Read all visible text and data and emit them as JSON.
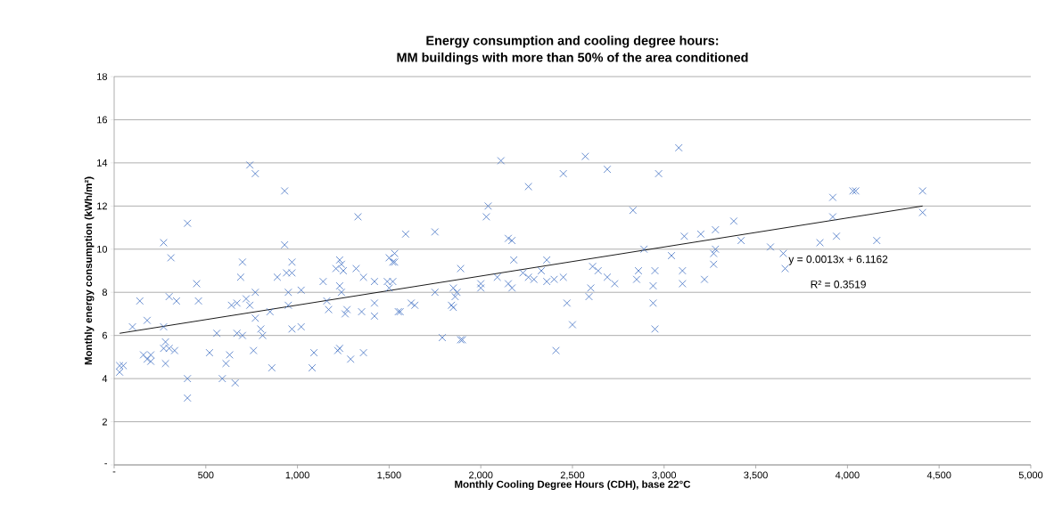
{
  "chart_data": {
    "type": "scatter",
    "title": "Energy consumption and cooling degree hours:\nMM buildings with more than 50% of the area conditioned",
    "xlabel": "Monthly Cooling Degree Hours (CDH), base 22°C",
    "ylabel": "Monthly energy consumption (kWh/m²)",
    "series": [
      {
        "marker": "cross",
        "color": "#4472c4",
        "x": [
          740,
          770,
          930,
          400,
          1330,
          270,
          930,
          310,
          700,
          970,
          690,
          890,
          940,
          970,
          1230,
          1240,
          1210,
          1250,
          1320,
          1360,
          1420,
          1500,
          1520,
          1520,
          450,
          140,
          300,
          340,
          460,
          100,
          180,
          270,
          640,
          670,
          720,
          770,
          740,
          770,
          800,
          810,
          670,
          700,
          560,
          760,
          520,
          610,
          630,
          590,
          660,
          400,
          400,
          30,
          50,
          30,
          160,
          180,
          200,
          200,
          280,
          270,
          300,
          330,
          280,
          860,
          850,
          950,
          970,
          1020,
          1020,
          950,
          1140,
          1160,
          1170,
          1260,
          1270,
          1350,
          1420,
          1420,
          1090,
          1080,
          1220,
          1230,
          1290,
          1360,
          1230,
          1240,
          1490,
          1500,
          1550,
          2110,
          2260,
          2450,
          2570,
          2690,
          2970,
          3080,
          2040,
          2030,
          2830,
          1590,
          1750,
          2150,
          2170,
          3110,
          2890,
          3040,
          1530,
          1530,
          1890,
          2180,
          2360,
          2230,
          2330,
          2090,
          2260,
          2290,
          2360,
          2400,
          2450,
          2150,
          2170,
          2000,
          2000,
          1850,
          1870,
          1750,
          2610,
          2640,
          2690,
          2730,
          2850,
          2860,
          2950,
          2940,
          3100,
          3100,
          2600,
          2590,
          2470,
          2940,
          2500,
          2950,
          2410,
          1790,
          1890,
          1900,
          1840,
          1850,
          1860,
          1560,
          1620,
          1640,
          3920,
          4030,
          4045,
          4410,
          4410,
          3920,
          3940,
          4160,
          3850,
          3380,
          3420,
          3280,
          3200,
          3280,
          3270,
          3270,
          3580,
          3650,
          3660,
          3220
        ],
        "values": [
          13.9,
          13.5,
          12.7,
          11.2,
          11.5,
          10.3,
          10.2,
          9.6,
          9.4,
          9.4,
          8.7,
          8.7,
          8.9,
          8.9,
          9.5,
          9.3,
          9.1,
          9.0,
          9.1,
          8.7,
          8.5,
          9.6,
          9.4,
          8.5,
          8.4,
          7.6,
          7.8,
          7.6,
          7.6,
          6.4,
          6.7,
          6.4,
          7.4,
          7.5,
          7.7,
          8.0,
          7.4,
          6.8,
          6.3,
          6.0,
          6.1,
          6.0,
          6.1,
          5.3,
          5.2,
          4.7,
          5.1,
          4.0,
          3.8,
          4.0,
          3.1,
          4.6,
          4.6,
          4.3,
          5.1,
          4.9,
          4.8,
          5.1,
          5.7,
          5.4,
          5.4,
          5.3,
          4.7,
          4.5,
          7.1,
          7.4,
          6.3,
          6.4,
          8.1,
          8.0,
          8.5,
          7.6,
          7.2,
          7.0,
          7.2,
          7.1,
          6.9,
          7.5,
          5.2,
          4.5,
          5.3,
          5.4,
          4.9,
          5.2,
          8.3,
          8.0,
          8.5,
          8.2,
          7.1,
          14.1,
          12.9,
          13.5,
          14.3,
          13.7,
          13.5,
          14.7,
          12.0,
          11.5,
          11.8,
          10.7,
          10.8,
          10.5,
          10.4,
          10.6,
          10.0,
          9.7,
          9.8,
          9.4,
          9.1,
          9.5,
          9.5,
          8.9,
          9.0,
          8.7,
          8.7,
          8.6,
          8.5,
          8.6,
          8.7,
          8.4,
          8.2,
          8.4,
          8.2,
          8.2,
          8.0,
          8.0,
          9.2,
          9.0,
          8.7,
          8.4,
          8.6,
          9.0,
          9.0,
          8.3,
          9.0,
          8.4,
          8.2,
          7.8,
          7.5,
          7.5,
          6.5,
          6.3,
          5.3,
          5.9,
          5.8,
          5.8,
          7.4,
          7.3,
          7.8,
          7.1,
          7.5,
          7.4,
          12.4,
          12.7,
          12.7,
          12.7,
          11.7,
          11.5,
          10.6,
          10.4,
          10.3,
          11.3,
          10.4,
          10.9,
          10.7,
          10.0,
          9.8,
          9.3,
          10.1,
          9.8,
          9.1,
          8.6
        ]
      },
      {
        "type": "line",
        "marker": "none",
        "color": "#000000",
        "x": [
          30,
          4410
        ],
        "values": [
          6.1,
          12.0
        ]
      }
    ],
    "grid": "y",
    "legend": false,
    "xlim": [
      0,
      5000
    ],
    "ylim": [
      0,
      18
    ],
    "xticks": [
      {
        "value": 0,
        "label": "-"
      },
      500,
      {
        "value": 1000,
        "label": "1,000"
      },
      {
        "value": 1500,
        "label": "1,500"
      },
      {
        "value": 2000,
        "label": "2,000"
      },
      {
        "value": 2500,
        "label": "2,500"
      },
      {
        "value": 3000,
        "label": "3,000"
      },
      {
        "value": 3500,
        "label": "3,500"
      },
      {
        "value": 4000,
        "label": "4,000"
      },
      {
        "value": 4500,
        "label": "4,500"
      },
      {
        "value": 5000,
        "label": "5,000"
      }
    ],
    "yticks": [
      {
        "value": 0,
        "label": "-"
      },
      2,
      4,
      6,
      8,
      10,
      12,
      14,
      16,
      18
    ],
    "annotations": [
      "y = 0.0013x + 6.1162",
      "R² = 0.3519"
    ]
  }
}
